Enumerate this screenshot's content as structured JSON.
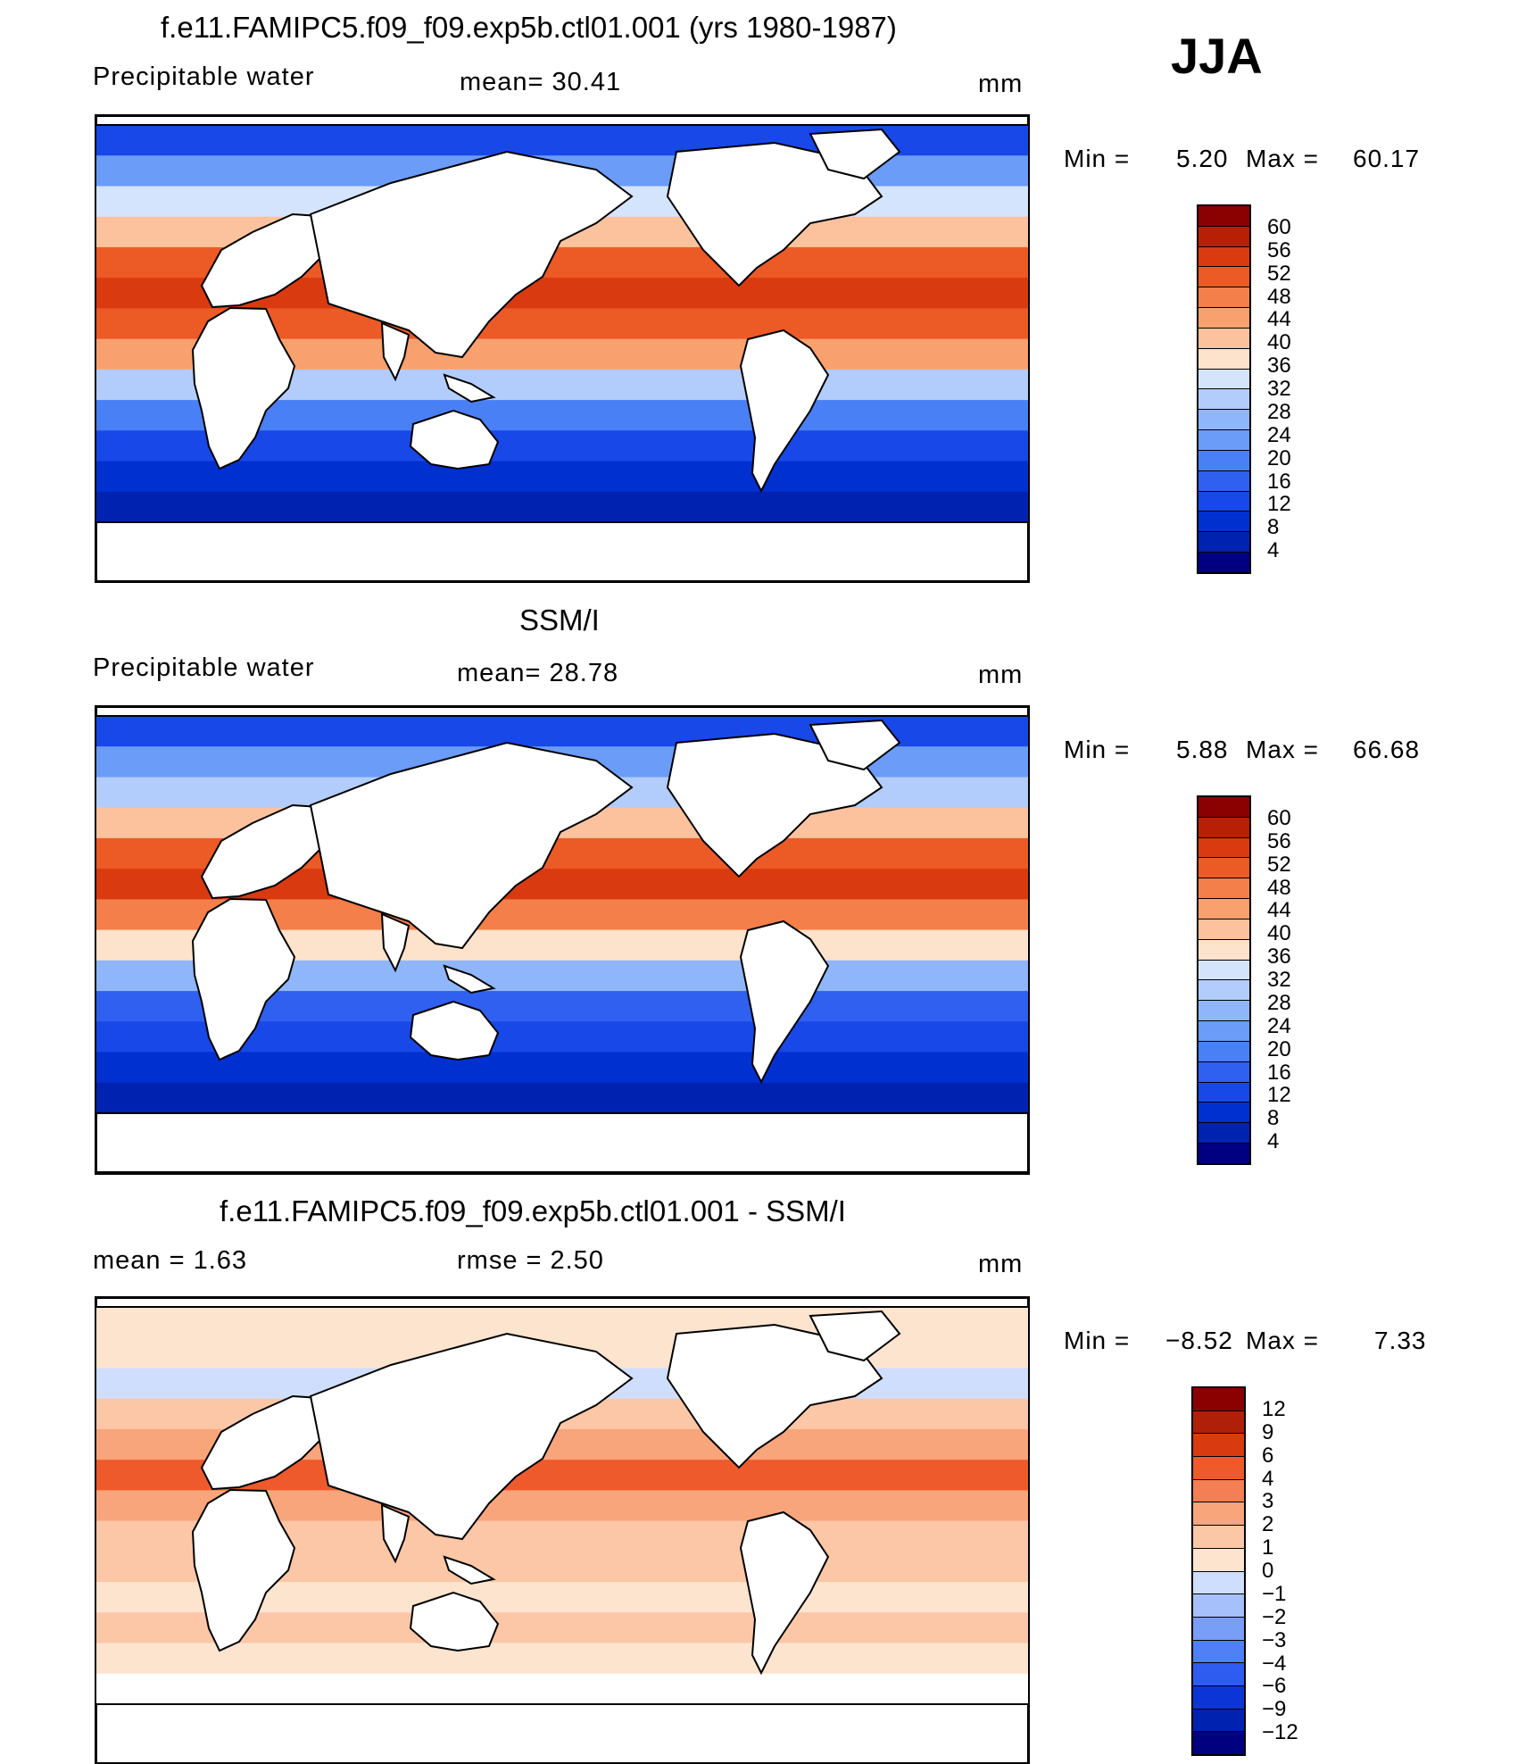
{
  "season": "JJA",
  "units": "mm",
  "colors": {
    "pw_scale": [
      "#000080",
      "#0022b0",
      "#0030d0",
      "#1848e8",
      "#3060f0",
      "#4a80f5",
      "#6a9cf8",
      "#8fb6fa",
      "#b2ccfb",
      "#d4e4fc",
      "#fde2cc",
      "#fcc29e",
      "#f9a06f",
      "#f47f4a",
      "#ec5a26",
      "#d93a10",
      "#b82006",
      "#8b0000"
    ],
    "diff_scale": [
      "#000080",
      "#0022b0",
      "#0c35d8",
      "#2f5cf0",
      "#5080f5",
      "#789ef8",
      "#a6c0fb",
      "#cfdefd",
      "#fde4cf",
      "#fcc7a6",
      "#f9a57c",
      "#f47f55",
      "#ee5a2b",
      "#d93a10",
      "#b02008",
      "#8b0000"
    ],
    "land": "#ffffff",
    "coast": "#000000"
  },
  "panels": [
    {
      "title": "f.e11.FAMIPC5.f09_f09.exp5b.ctl01.001 (yrs 1980-1987)",
      "left_label": "Precipitable  water",
      "mid_label": "mean=   30.41",
      "units": "mm",
      "min_label": "Min  =",
      "min_value": "5.20",
      "max_label": "Max  =",
      "max_value": "60.17",
      "min": 5.2,
      "max": 60.17,
      "mean": 30.41,
      "colorbar_ticks": [
        "60",
        "56",
        "52",
        "48",
        "44",
        "40",
        "36",
        "32",
        "28",
        "24",
        "20",
        "16",
        "12",
        "8",
        "4"
      ]
    },
    {
      "title": "SSM/I",
      "left_label": "Precipitable  water",
      "mid_label": "mean=   28.78",
      "units": "mm",
      "min_label": "Min  =",
      "min_value": "5.88",
      "max_label": "Max  =",
      "max_value": "66.68",
      "min": 5.88,
      "max": 66.68,
      "mean": 28.78,
      "colorbar_ticks": [
        "60",
        "56",
        "52",
        "48",
        "44",
        "40",
        "36",
        "32",
        "28",
        "24",
        "20",
        "16",
        "12",
        "8",
        "4"
      ]
    },
    {
      "title": "f.e11.FAMIPC5.f09_f09.exp5b.ctl01.001 - SSM/I",
      "left_label": "mean  =      1.63",
      "mid_label": "rmse  =      2.50",
      "units": "mm",
      "min_label": "Min  =",
      "min_value": "−8.52",
      "max_label": "Max  =",
      "max_value": "7.33",
      "min": -8.52,
      "max": 7.33,
      "mean": 1.63,
      "rmse": 2.5,
      "colorbar_ticks": [
        "12",
        "9",
        "6",
        "4",
        "3",
        "2",
        "1",
        "0",
        "−1",
        "−2",
        "−3",
        "−4",
        "−6",
        "−9",
        "−12"
      ]
    }
  ]
}
